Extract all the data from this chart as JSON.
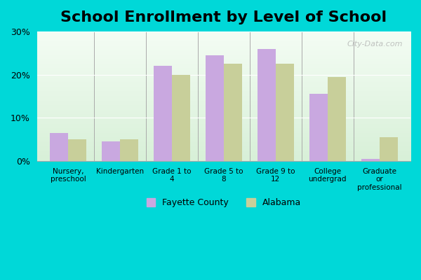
{
  "title": "School Enrollment by Level of School",
  "categories": [
    "Nursery,\npreschool",
    "Kindergarten",
    "Grade 1 to\n4",
    "Grade 5 to\n8",
    "Grade 9 to\n12",
    "College\nundergrad",
    "Graduate\nor\nprofessional"
  ],
  "fayette_values": [
    6.5,
    4.5,
    22.0,
    24.5,
    26.0,
    15.5,
    0.5
  ],
  "alabama_values": [
    5.0,
    5.0,
    20.0,
    22.5,
    22.5,
    19.5,
    5.5
  ],
  "fayette_color": "#c9a8e0",
  "alabama_color": "#c8cf9a",
  "plot_bg_top": "#f4fdf4",
  "plot_bg_bottom": "#d8f0d8",
  "outer_bg": "#00d8d8",
  "ylim": [
    0,
    30
  ],
  "yticks": [
    0,
    10,
    20,
    30
  ],
  "ytick_labels": [
    "0%",
    "10%",
    "20%",
    "30%"
  ],
  "legend_fayette": "Fayette County",
  "legend_alabama": "Alabama",
  "title_fontsize": 16,
  "watermark": "City-Data.com"
}
